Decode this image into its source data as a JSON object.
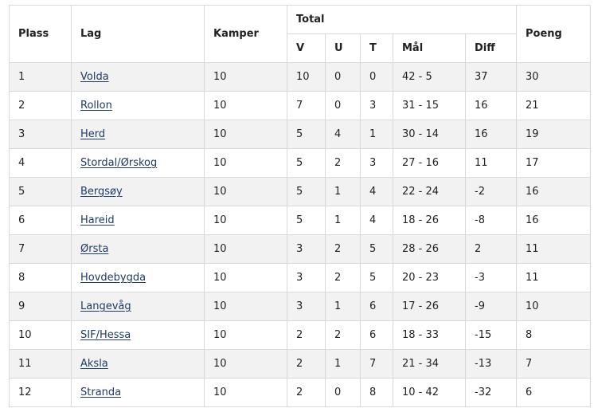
{
  "table": {
    "headers": {
      "plass": "Plass",
      "lag": "Lag",
      "kamper": "Kamper",
      "total": "Total",
      "v": "V",
      "u": "U",
      "t": "T",
      "mal": "Mål",
      "diff": "Diff",
      "poeng": "Poeng"
    },
    "rows": [
      {
        "plass": "1",
        "lag": "Volda",
        "kamper": "10",
        "v": "10",
        "u": "0",
        "t": "0",
        "mal": "42 - 5",
        "diff": "37",
        "poeng": "30"
      },
      {
        "plass": "2",
        "lag": "Rollon",
        "kamper": "10",
        "v": "7",
        "u": "0",
        "t": "3",
        "mal": "31 - 15",
        "diff": "16",
        "poeng": "21"
      },
      {
        "plass": "3",
        "lag": "Herd",
        "kamper": "10",
        "v": "5",
        "u": "4",
        "t": "1",
        "mal": "30 - 14",
        "diff": "16",
        "poeng": "19"
      },
      {
        "plass": "4",
        "lag": "Stordal/Ørskog",
        "kamper": "10",
        "v": "5",
        "u": "2",
        "t": "3",
        "mal": "27 - 16",
        "diff": "11",
        "poeng": "17"
      },
      {
        "plass": "5",
        "lag": "Bergsøy",
        "kamper": "10",
        "v": "5",
        "u": "1",
        "t": "4",
        "mal": "22 - 24",
        "diff": "-2",
        "poeng": "16"
      },
      {
        "plass": "6",
        "lag": "Hareid",
        "kamper": "10",
        "v": "5",
        "u": "1",
        "t": "4",
        "mal": "18 - 26",
        "diff": "-8",
        "poeng": "16"
      },
      {
        "plass": "7",
        "lag": "Ørsta",
        "kamper": "10",
        "v": "3",
        "u": "2",
        "t": "5",
        "mal": "28 - 26",
        "diff": "2",
        "poeng": "11"
      },
      {
        "plass": "8",
        "lag": "Hovdebygda",
        "kamper": "10",
        "v": "3",
        "u": "2",
        "t": "5",
        "mal": "20 - 23",
        "diff": "-3",
        "poeng": "11"
      },
      {
        "plass": "9",
        "lag": "Langevåg",
        "kamper": "10",
        "v": "3",
        "u": "1",
        "t": "6",
        "mal": "17 - 26",
        "diff": "-9",
        "poeng": "10"
      },
      {
        "plass": "10",
        "lag": "SIF/Hessa",
        "kamper": "10",
        "v": "2",
        "u": "2",
        "t": "6",
        "mal": "18 - 33",
        "diff": "-15",
        "poeng": "8"
      },
      {
        "plass": "11",
        "lag": "Aksla",
        "kamper": "10",
        "v": "2",
        "u": "1",
        "t": "7",
        "mal": "21 - 34",
        "diff": "-13",
        "poeng": "7"
      },
      {
        "plass": "12",
        "lag": "Stranda",
        "kamper": "10",
        "v": "2",
        "u": "0",
        "t": "8",
        "mal": "10 - 42",
        "diff": "-32",
        "poeng": "6"
      }
    ]
  },
  "colors": {
    "link": "#1f3a68",
    "row_alt": "#f2f2f2",
    "border": "#d9d9d9",
    "promotion_separator": "#7a7a7a"
  }
}
